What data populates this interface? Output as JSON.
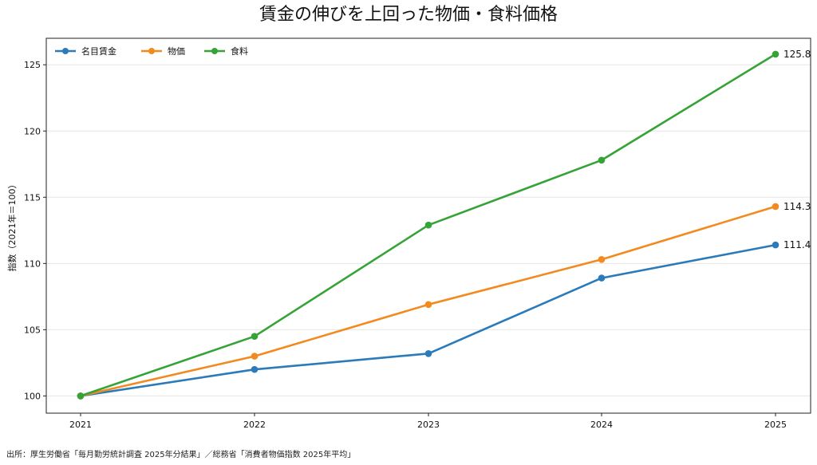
{
  "title": "賃金の伸びを上回った物価・食料価格",
  "source": "出所：厚生労働省「毎月勤労統計調査 2025年分結果」／総務省「消費者物価指数 2025年平均」",
  "chart_data": {
    "type": "line",
    "title": "賃金の伸びを上回った物価・食料価格",
    "xlabel": "",
    "ylabel": "指数（2021年＝100）",
    "x": [
      "2021",
      "2022",
      "2023",
      "2024",
      "2025"
    ],
    "ylim": [
      98.7,
      127.0
    ],
    "yticks": [
      100,
      105,
      110,
      115,
      120,
      125
    ],
    "grid": "horizontal",
    "legend_position": "top-left",
    "series": [
      {
        "name": "名目賃金",
        "color": "#2b7bba",
        "values": [
          100,
          102.0,
          103.2,
          108.9,
          111.4
        ],
        "end_label": "111.4"
      },
      {
        "name": "物価",
        "color": "#f28a1f",
        "values": [
          100,
          103.0,
          106.9,
          110.3,
          114.3
        ],
        "end_label": "114.3"
      },
      {
        "name": "食料",
        "color": "#36a336",
        "values": [
          100,
          104.5,
          112.9,
          117.8,
          125.8
        ],
        "end_label": "125.8"
      }
    ]
  }
}
